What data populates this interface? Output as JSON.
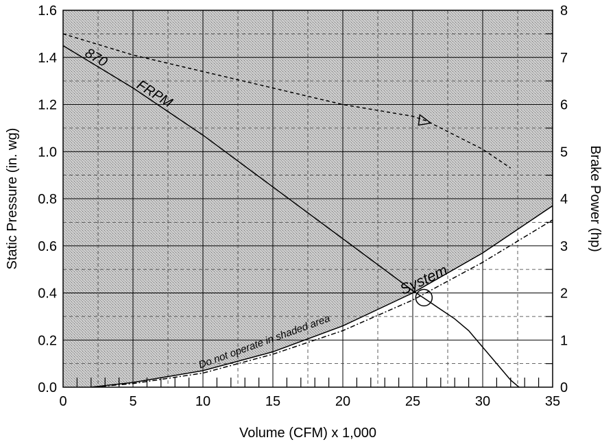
{
  "chart_data": {
    "type": "line",
    "title": "",
    "xlabel": "Volume (CFM) x 1,000",
    "ylabel": "Static Pressure (in. wg)",
    "y2label": "Brake Power (hp)",
    "xlim": [
      0,
      35
    ],
    "ylim": [
      0,
      1.6
    ],
    "y2lim": [
      0,
      8
    ],
    "x_ticks": [
      "0",
      "5",
      "10",
      "15",
      "20",
      "25",
      "30",
      "35"
    ],
    "y_ticks": [
      "0.0",
      "0.2",
      "0.4",
      "0.6",
      "0.8",
      "1.0",
      "1.2",
      "1.4",
      "1.6"
    ],
    "y2_ticks": [
      "0",
      "1",
      "2",
      "3",
      "4",
      "5",
      "6",
      "7",
      "8"
    ],
    "grid": true,
    "series": [
      {
        "name": "870 FRPM",
        "axis": "left",
        "style": "solid",
        "x": [
          0,
          5,
          10,
          15,
          20,
          25,
          26,
          28,
          29,
          30,
          31,
          32,
          32.6
        ],
        "y": [
          1.45,
          1.27,
          1.07,
          0.85,
          0.63,
          0.41,
          0.37,
          0.29,
          0.24,
          0.17,
          0.1,
          0.03,
          0.0
        ]
      },
      {
        "name": "System",
        "axis": "left",
        "style": "solid",
        "x": [
          2,
          5,
          10,
          15,
          20,
          25,
          30,
          35
        ],
        "y": [
          0.0,
          0.02,
          0.07,
          0.15,
          0.26,
          0.4,
          0.57,
          0.77
        ]
      },
      {
        "name": "",
        "axis": "left",
        "style": "dash-dot",
        "x": [
          2,
          5,
          10,
          15,
          20,
          25,
          30,
          35
        ],
        "y": [
          0.0,
          0.015,
          0.06,
          0.14,
          0.24,
          0.37,
          0.53,
          0.71
        ]
      },
      {
        "name": "",
        "axis": "right",
        "style": "dashed",
        "x": [
          0,
          5,
          10,
          15,
          20,
          25,
          26,
          28,
          30,
          32
        ],
        "y": [
          7.5,
          7.05,
          6.7,
          6.35,
          6.0,
          5.75,
          5.65,
          5.35,
          5.05,
          4.65
        ]
      }
    ],
    "annotations": [
      {
        "text": "870",
        "series": "fan-curve"
      },
      {
        "text": "FRPM",
        "series": "fan-curve"
      },
      {
        "text": "System",
        "series": "system-curve"
      },
      {
        "text": "Do not operate in shaded area",
        "series": "system-curve"
      }
    ],
    "markers": [
      {
        "shape": "circle",
        "x": 25.8,
        "y": 0.38,
        "axis": "left"
      },
      {
        "shape": "triangle",
        "x": 25.8,
        "y": 5.65,
        "axis": "right"
      }
    ],
    "shaded_region": "above system curve",
    "colors": {
      "line": "#000000",
      "shade": "#bdbdbd",
      "background": "#ffffff"
    }
  }
}
